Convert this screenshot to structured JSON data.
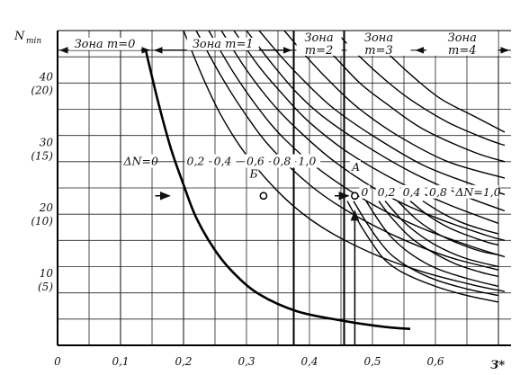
{
  "chart_data": {
    "type": "line",
    "title": "",
    "xlabel": "З*",
    "ylabel": "N",
    "ylabel_sub": "min",
    "xlim": [
      0,
      0.72
    ],
    "ylim": [
      0,
      48
    ],
    "x_ticks": [
      {
        "value": 0,
        "label": "0"
      },
      {
        "value": 0.1,
        "label": "0,1"
      },
      {
        "value": 0.2,
        "label": "0,2"
      },
      {
        "value": 0.3,
        "label": "0,3"
      },
      {
        "value": 0.4,
        "label": "0,4"
      },
      {
        "value": 0.5,
        "label": "0,5"
      },
      {
        "value": 0.6,
        "label": "0,6"
      }
    ],
    "y_ticks": [
      {
        "value": 10,
        "label": "10",
        "sub": "(5)"
      },
      {
        "value": 20,
        "label": "20",
        "sub": "(10)"
      },
      {
        "value": 30,
        "label": "30",
        "sub": "(15)"
      },
      {
        "value": 40,
        "label": "40",
        "sub": "(20)"
      }
    ],
    "grid": true,
    "zones": [
      {
        "label": "Зона  m=0",
        "from": 0,
        "to": 0.15
      },
      {
        "label": "Зона  m=1",
        "from": 0.15,
        "to": 0.375
      },
      {
        "label": "Зона",
        "label2": "m=2",
        "from": 0.375,
        "to": 0.455
      },
      {
        "label": "Зона",
        "label2": "m=3",
        "from": 0.455,
        "to": 0.565
      },
      {
        "label": "Зона",
        "label2": "m=4",
        "from": 0.565,
        "to": 0.72
      }
    ],
    "zone_row_y": 45,
    "series": [
      {
        "x": [
          0.14,
          0.16,
          0.18,
          0.2,
          0.22,
          0.25,
          0.28,
          0.32,
          0.38,
          0.45,
          0.52,
          0.56
        ],
        "y": [
          45,
          37,
          30,
          24.5,
          19.5,
          14.5,
          11,
          7.8,
          5.2,
          3.8,
          2.8,
          2.5
        ],
        "heavy": true
      },
      {
        "x": [
          0.2,
          0.23,
          0.26,
          0.3,
          0.36,
          0.42,
          0.5,
          0.58,
          0.66,
          0.71
        ],
        "y": [
          48,
          41,
          35,
          29,
          22.5,
          18,
          14,
          11.2,
          9.2,
          8.2
        ]
      },
      {
        "x": [
          0.22,
          0.26,
          0.3,
          0.34,
          0.4,
          0.46,
          0.54,
          0.62,
          0.7
        ],
        "y": [
          48,
          41,
          35,
          30,
          24.5,
          20.5,
          16.5,
          13.5,
          11.5
        ]
      },
      {
        "x": [
          0.24,
          0.28,
          0.32,
          0.36,
          0.42,
          0.5,
          0.58,
          0.66,
          0.71
        ],
        "y": [
          48,
          41.5,
          36,
          31.5,
          26.5,
          21.5,
          17.8,
          15,
          13.5
        ]
      },
      {
        "x": [
          0.26,
          0.3,
          0.34,
          0.38,
          0.44,
          0.52,
          0.6,
          0.68,
          0.71
        ],
        "y": [
          48,
          42,
          37,
          33,
          28,
          23,
          19.5,
          16.8,
          16
        ]
      },
      {
        "x": [
          0.28,
          0.32,
          0.36,
          0.4,
          0.46,
          0.54,
          0.62,
          0.7
        ],
        "y": [
          48,
          42.5,
          38,
          34,
          29.5,
          25,
          21.5,
          18.6
        ]
      },
      {
        "x": [
          0.3,
          0.34,
          0.38,
          0.42,
          0.48,
          0.56,
          0.64,
          0.71
        ],
        "y": [
          48,
          43,
          38.5,
          35,
          31,
          26.5,
          23,
          20.5
        ]
      },
      {
        "x": [
          0.32,
          0.36,
          0.4,
          0.44,
          0.5,
          0.58,
          0.66,
          0.71
        ],
        "y": [
          48,
          43.5,
          39.5,
          36,
          32,
          27.5,
          24.5,
          23
        ]
      },
      {
        "x": [
          0.36,
          0.4,
          0.44,
          0.48,
          0.54,
          0.62,
          0.71
        ],
        "y": [
          48,
          43.5,
          39.5,
          36,
          32,
          28,
          25.5
        ]
      },
      {
        "x": [
          0.4,
          0.44,
          0.48,
          0.52,
          0.58,
          0.66,
          0.71
        ],
        "y": [
          48,
          44,
          40,
          37,
          33,
          29.5,
          28
        ]
      },
      {
        "x": [
          0.44,
          0.48,
          0.52,
          0.56,
          0.62,
          0.68,
          0.71
        ],
        "y": [
          48,
          44,
          40.5,
          37.5,
          34,
          31.5,
          30.5
        ]
      },
      {
        "x": [
          0.49,
          0.53,
          0.57,
          0.61,
          0.66,
          0.71
        ],
        "y": [
          48,
          44,
          40.5,
          37.5,
          35,
          32.5
        ]
      },
      {
        "x": [
          0.46,
          0.48,
          0.5,
          0.52,
          0.55,
          0.6,
          0.65,
          0.7
        ],
        "y": [
          22,
          18.5,
          15.5,
          13,
          11,
          9,
          7.6,
          6.6
        ]
      },
      {
        "x": [
          0.47,
          0.49,
          0.51,
          0.53,
          0.56,
          0.6,
          0.65,
          0.7
        ],
        "y": [
          22,
          18.8,
          16,
          13.8,
          11.8,
          10,
          8.6,
          7.6
        ]
      },
      {
        "x": [
          0.49,
          0.51,
          0.53,
          0.56,
          0.6,
          0.65,
          0.7
        ],
        "y": [
          22,
          19,
          16.5,
          14,
          11.8,
          10.2,
          9
        ]
      },
      {
        "x": [
          0.51,
          0.53,
          0.56,
          0.59,
          0.63,
          0.67,
          0.7
        ],
        "y": [
          22,
          19.5,
          16.5,
          14.5,
          12.5,
          11.2,
          10.5
        ]
      },
      {
        "x": [
          0.52,
          0.55,
          0.58,
          0.61,
          0.65,
          0.7
        ],
        "y": [
          22,
          18.8,
          16.5,
          14.8,
          13.2,
          12
        ]
      },
      {
        "x": [
          0.54,
          0.57,
          0.6,
          0.63,
          0.67,
          0.7
        ],
        "y": [
          22,
          19.2,
          17.2,
          15.8,
          14.4,
          13.8
        ]
      },
      {
        "x": [
          0.56,
          0.59,
          0.62,
          0.65,
          0.68,
          0.7
        ],
        "y": [
          22,
          19.7,
          18,
          16.8,
          15.8,
          15.3
        ]
      },
      {
        "x": [
          0.58,
          0.61,
          0.64,
          0.67,
          0.7
        ],
        "y": [
          22,
          20.2,
          18.8,
          17.8,
          17
        ]
      }
    ],
    "boundaries": [
      {
        "x": [
          0.375,
          0.375
        ],
        "y": [
          0,
          48
        ]
      },
      {
        "x": [
          0.455,
          0.455
        ],
        "y": [
          0,
          48
        ]
      }
    ],
    "curve_labels": [
      {
        "text": "ΔN=0",
        "x": 0.105,
        "y": 27.5
      },
      {
        "text": "0,2",
        "x": 0.205,
        "y": 27.5
      },
      {
        "text": "0,4",
        "x": 0.248,
        "y": 27.5
      },
      {
        "text": "0,6",
        "x": 0.3,
        "y": 27.5
      },
      {
        "text": "0,8",
        "x": 0.342,
        "y": 27.5
      },
      {
        "text": "1,0",
        "x": 0.382,
        "y": 27.5
      },
      {
        "text": "0",
        "x": 0.482,
        "y": 22.8
      },
      {
        "text": "0,2",
        "x": 0.508,
        "y": 22.8
      },
      {
        "text": "0,4",
        "x": 0.548,
        "y": 22.8
      },
      {
        "text": "0,8",
        "x": 0.59,
        "y": 22.8
      },
      {
        "text": "ΔN=1,0",
        "x": 0.632,
        "y": 22.8
      }
    ],
    "points": [
      {
        "label": "Б",
        "x": 0.327,
        "y": 22.8,
        "label_dx": -0.022,
        "label_dy": 2.8
      },
      {
        "label": "А",
        "x": 0.472,
        "y": 22.8,
        "label_dx": -0.005,
        "label_dy": 3.8
      }
    ],
    "arrows": [
      {
        "from": [
          0.155,
          22.8
        ],
        "to": [
          0.178,
          22.8
        ]
      },
      {
        "from": [
          0.44,
          22.8
        ],
        "to": [
          0.462,
          22.8
        ]
      },
      {
        "from": [
          0.472,
          0
        ],
        "to": [
          0.472,
          20.5
        ]
      }
    ]
  }
}
